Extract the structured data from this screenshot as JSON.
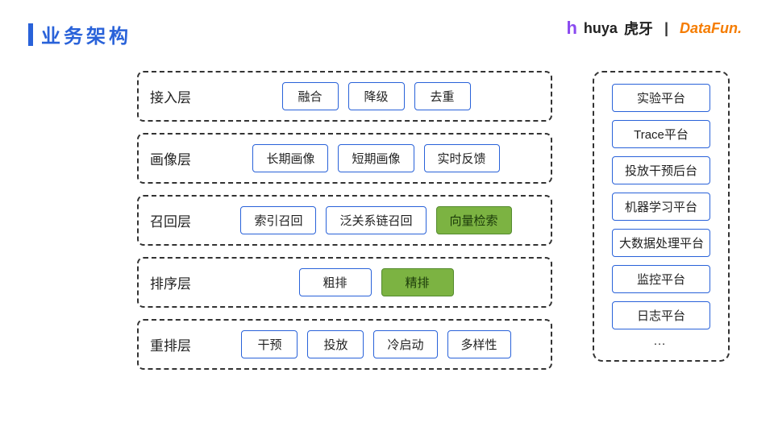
{
  "title": "业务架构",
  "logos": {
    "huya_icon": "h",
    "huya_en": "huya",
    "huya_cn": "虎牙",
    "separator": "|",
    "datafun": "DataFun."
  },
  "colors": {
    "accent": "#2962d9",
    "box_border": "#2962d9",
    "dashed_border": "#333333",
    "highlight_fill": "#7cb342",
    "highlight_border": "#558b2f",
    "background": "#ffffff",
    "huya_accent": "#8a4af0",
    "datafun_color": "#f57c00"
  },
  "layers": [
    {
      "label": "接入层",
      "items": [
        {
          "text": "融合",
          "highlight": false
        },
        {
          "text": "降级",
          "highlight": false
        },
        {
          "text": "去重",
          "highlight": false
        }
      ]
    },
    {
      "label": "画像层",
      "items": [
        {
          "text": "长期画像",
          "highlight": false
        },
        {
          "text": "短期画像",
          "highlight": false
        },
        {
          "text": "实时反馈",
          "highlight": false
        }
      ]
    },
    {
      "label": "召回层",
      "items": [
        {
          "text": "索引召回",
          "highlight": false
        },
        {
          "text": "泛关系链召回",
          "highlight": false
        },
        {
          "text": "向量检索",
          "highlight": true
        }
      ]
    },
    {
      "label": "排序层",
      "items": [
        {
          "text": "粗排",
          "highlight": false
        },
        {
          "text": "精排",
          "highlight": true
        }
      ]
    },
    {
      "label": "重排层",
      "items": [
        {
          "text": "干预",
          "highlight": false
        },
        {
          "text": "投放",
          "highlight": false
        },
        {
          "text": "冷启动",
          "highlight": false
        },
        {
          "text": "多样性",
          "highlight": false
        }
      ]
    }
  ],
  "sidebar": {
    "items": [
      "实验平台",
      "Trace平台",
      "投放干预后台",
      "机器学习平台",
      "大数据处理平台",
      "监控平台",
      "日志平台"
    ],
    "ellipsis": "…"
  },
  "typography": {
    "title_fontsize": 24,
    "label_fontsize": 17,
    "item_fontsize": 15
  },
  "diagram_type": "layered-architecture"
}
